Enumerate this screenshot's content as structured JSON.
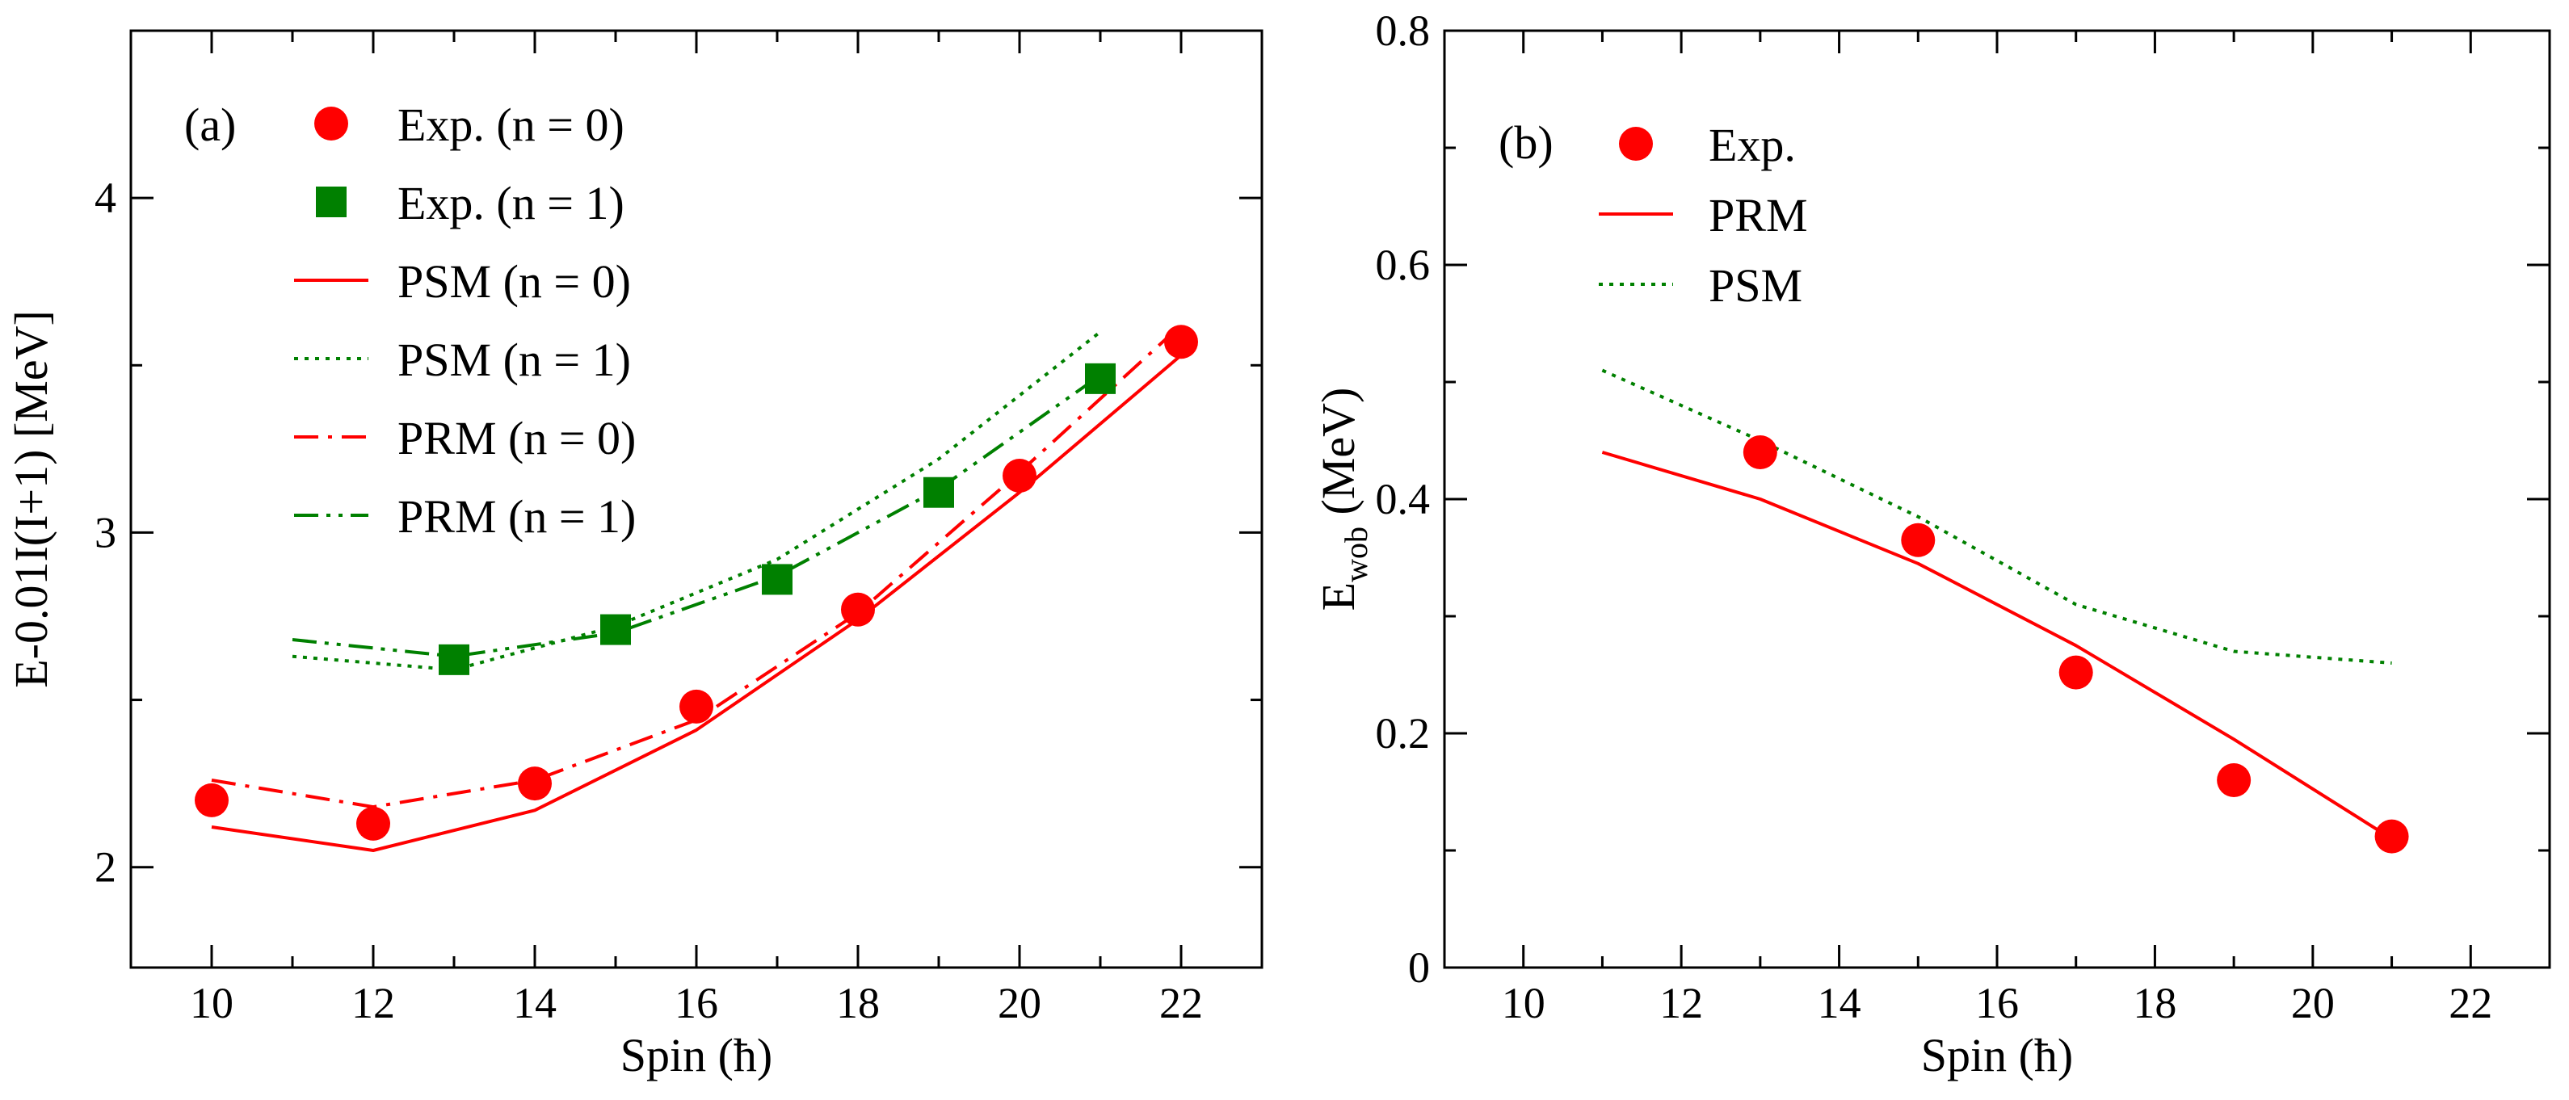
{
  "colors": {
    "red": "#ff0000",
    "green": "#008000",
    "frame": "#000000"
  },
  "chart_data": [
    {
      "type": "line",
      "panel_label": "(a)",
      "xlabel": "Spin (ħ)",
      "ylabel": "E-0.01I(I+1) [MeV]",
      "xlim": [
        9,
        23
      ],
      "ylim": [
        1.7,
        4.5
      ],
      "x_ticks": [
        10,
        12,
        14,
        16,
        18,
        20,
        22
      ],
      "y_ticks": [
        2,
        3,
        4
      ],
      "x_tick_labels": [
        "10",
        "12",
        "14",
        "16",
        "18",
        "20",
        "22"
      ],
      "y_tick_labels": [
        "2",
        "3",
        "4"
      ],
      "legend_position": "top-left",
      "series": [
        {
          "name": "Exp. (n = 0)",
          "style": "circle",
          "color": "#ff0000",
          "x": [
            10,
            12,
            14,
            16,
            18,
            20,
            22
          ],
          "y": [
            2.2,
            2.13,
            2.25,
            2.48,
            2.77,
            3.17,
            3.57
          ]
        },
        {
          "name": "Exp. (n = 1)",
          "style": "square",
          "color": "#008000",
          "x": [
            13,
            15,
            17,
            19,
            21
          ],
          "y": [
            2.62,
            2.71,
            2.86,
            3.12,
            3.46
          ]
        },
        {
          "name": "PSM (n = 0)",
          "style": "solid",
          "color": "#ff0000",
          "x": [
            10,
            12,
            14,
            16,
            18,
            20,
            22
          ],
          "y": [
            2.12,
            2.05,
            2.17,
            2.41,
            2.74,
            3.12,
            3.53
          ]
        },
        {
          "name": "PSM (n = 1)",
          "style": "dotted",
          "color": "#008000",
          "x": [
            11,
            13,
            15,
            17,
            19,
            21
          ],
          "y": [
            2.63,
            2.59,
            2.72,
            2.92,
            3.22,
            3.6
          ]
        },
        {
          "name": "PRM (n = 0)",
          "style": "dashdot",
          "color": "#ff0000",
          "x": [
            10,
            12,
            14,
            16,
            18,
            20,
            22
          ],
          "y": [
            2.26,
            2.18,
            2.26,
            2.44,
            2.76,
            3.18,
            3.62
          ]
        },
        {
          "name": "PRM (n = 1)",
          "style": "dashdotdot",
          "color": "#008000",
          "x": [
            11,
            13,
            15,
            17,
            19,
            21
          ],
          "y": [
            2.68,
            2.63,
            2.7,
            2.87,
            3.13,
            3.47
          ]
        }
      ]
    },
    {
      "type": "line",
      "panel_label": "(b)",
      "xlabel": "Spin (ħ)",
      "ylabel_main": "E",
      "ylabel_sub": "wob",
      "ylabel_rest": " (MeV)",
      "xlim": [
        9,
        23
      ],
      "ylim": [
        0,
        0.8
      ],
      "x_ticks": [
        10,
        12,
        14,
        16,
        18,
        20,
        22
      ],
      "y_ticks": [
        0,
        0.2,
        0.4,
        0.6,
        0.8
      ],
      "x_tick_labels": [
        "10",
        "12",
        "14",
        "16",
        "18",
        "20",
        "22"
      ],
      "y_tick_labels": [
        "0",
        "0.2",
        "0.4",
        "0.6",
        "0.8"
      ],
      "legend_position": "top-left",
      "series": [
        {
          "name": "Exp.",
          "style": "circle",
          "color": "#ff0000",
          "x": [
            13,
            15,
            17,
            19,
            21
          ],
          "y": [
            0.44,
            0.365,
            0.252,
            0.16,
            0.112
          ]
        },
        {
          "name": "PRM",
          "style": "solid",
          "color": "#ff0000",
          "x": [
            11,
            13,
            15,
            17,
            19,
            21
          ],
          "y": [
            0.44,
            0.4,
            0.345,
            0.275,
            0.195,
            0.11
          ]
        },
        {
          "name": "PSM",
          "style": "dotted",
          "color": "#008000",
          "x": [
            11,
            13,
            15,
            17,
            19,
            21
          ],
          "y": [
            0.51,
            0.45,
            0.385,
            0.31,
            0.27,
            0.26
          ]
        }
      ]
    }
  ]
}
